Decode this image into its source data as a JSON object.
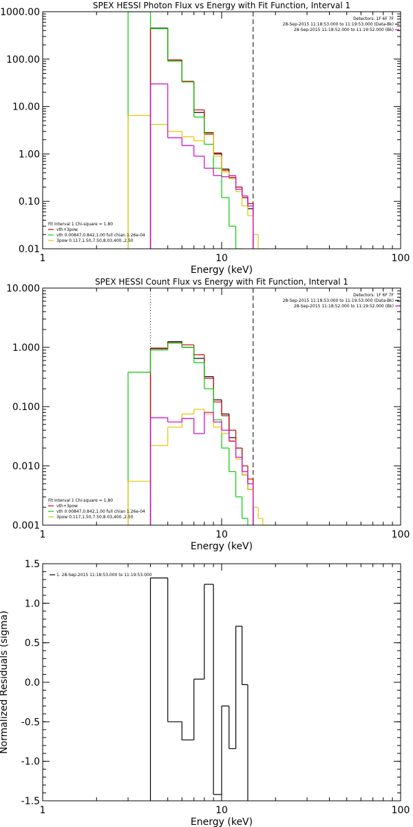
{
  "chart_data": [
    {
      "type": "line",
      "title": "SPEX HESSI Photon Flux vs Energy with Fit Function, Interval 1",
      "xlabel": "Energy (keV)",
      "ylabel": "",
      "xscale": "log",
      "yscale": "log",
      "xlim": [
        1,
        100
      ],
      "ylim": [
        0.01,
        1000
      ],
      "xtick_labels": [
        "1",
        "10",
        "100"
      ],
      "ytick_labels": [
        "0.01",
        "0.10",
        "1.00",
        "10.00",
        "100.00",
        "1000.00"
      ],
      "vlines": [
        {
          "x": 3.0,
          "color": "#00cc00",
          "style": "solid"
        },
        {
          "x": 4.0,
          "color": "#000000",
          "style": "solid"
        },
        {
          "x": 15.0,
          "color": "#000000",
          "style": "dashed"
        }
      ],
      "bin_edges": [
        3,
        4,
        5,
        6,
        7,
        8,
        9,
        10,
        11,
        12,
        13,
        14,
        15,
        16,
        17,
        18
      ],
      "series": [
        {
          "name": "vth+3pow",
          "color": "#000000",
          "values": [
            null,
            450,
            95,
            33,
            7.5,
            2.8,
            1.0,
            0.48,
            0.3,
            0.2,
            0.12,
            0.07,
            null,
            null,
            null
          ]
        },
        {
          "name": "data",
          "color": "#cc0000",
          "values": [
            null,
            440,
            96,
            34,
            8.5,
            2.6,
            1.05,
            0.45,
            0.32,
            0.2,
            0.12,
            0.09,
            null,
            null,
            null
          ]
        },
        {
          "name": "vth 0.00847,0.842,1.00  full chian 1.26e-04",
          "color": "#00cc00",
          "values": [
            1000,
            440,
            90,
            33,
            6.0,
            1.6,
            0.5,
            0.12,
            0.03,
            0.01,
            null,
            null,
            null,
            null,
            null
          ]
        },
        {
          "name": "3pow 0.117,1.50,7.50,8.03,400.,2.50",
          "color": "#e6c300",
          "values": [
            6.5,
            4.2,
            3.0,
            2.3,
            1.9,
            2.7,
            0.9,
            0.42,
            0.3,
            0.16,
            0.08,
            0.05,
            0.02,
            0.01,
            0.005
          ]
        },
        {
          "name": "bkg",
          "color": "#cc00cc",
          "values": [
            null,
            30,
            2.2,
            1.5,
            0.9,
            0.5,
            0.35,
            0.33,
            0.35,
            0.18,
            0.13,
            0.08,
            null,
            null,
            null
          ]
        }
      ],
      "legend_top": [
        {
          "text": "Detectors: 1F 6F 7F",
          "color": ""
        },
        {
          "text": "28-Sep-2015 11:18:53.000 to 11:19:53.000 (Data-Bk)",
          "color": "#000000"
        },
        {
          "text": "28-Sep-2015 11:18:52.000 to 11:19:52.000 (Bk)",
          "color": "#cc00cc"
        }
      ],
      "legend_bottom": [
        {
          "text": "Fit Interval 1   Chi-square = 1.80",
          "color": ""
        },
        {
          "text": "vth+3pow",
          "color": "#cc0000"
        },
        {
          "text": "vth 0.00847,0.842,1.00  full chian 1.26e-04",
          "color": "#00cc00"
        },
        {
          "text": "3pow 0.117,1.50,7.50,8.03,400.,2.50",
          "color": "#e6c300"
        }
      ]
    },
    {
      "type": "line",
      "title": "SPEX HESSI Count Flux vs Energy with Fit Function, Interval 1",
      "xlabel": "Energy (keV)",
      "ylabel": "",
      "xscale": "log",
      "yscale": "log",
      "xlim": [
        1,
        100
      ],
      "ylim": [
        0.001,
        10
      ],
      "xtick_labels": [
        "1",
        "10",
        "100"
      ],
      "ytick_labels": [
        "0.001",
        "0.010",
        "0.100",
        "1.000",
        "10.000"
      ],
      "vlines": [
        {
          "x": 4.0,
          "color": "#000000",
          "style": "dotted"
        },
        {
          "x": 15.0,
          "color": "#000000",
          "style": "dashed"
        }
      ],
      "bin_edges": [
        3,
        4,
        5,
        6,
        7,
        8,
        9,
        10,
        11,
        12,
        13,
        14,
        15,
        16,
        17,
        18
      ],
      "series": [
        {
          "name": "vth+3pow",
          "color": "#000000",
          "values": [
            null,
            0.95,
            1.25,
            1.0,
            0.65,
            0.32,
            0.13,
            0.075,
            0.03,
            0.02,
            0.007,
            0.004,
            null,
            null,
            null
          ]
        },
        {
          "name": "data",
          "color": "#cc0000",
          "values": [
            null,
            0.97,
            1.2,
            1.1,
            0.75,
            0.3,
            0.12,
            0.07,
            0.04,
            0.02,
            0.01,
            0.006,
            null,
            null,
            null
          ]
        },
        {
          "name": "vth 0.00847,0.842,1.00  full chian 1.26e-04",
          "color": "#00cc00",
          "values": [
            0.38,
            0.9,
            1.18,
            1.0,
            0.55,
            0.2,
            0.06,
            0.02,
            0.008,
            0.003,
            0.0013,
            null,
            null,
            null,
            null
          ]
        },
        {
          "name": "3pow 0.117,1.50,7.50,8.03,400.,2.50",
          "color": "#e6c300",
          "values": [
            0.0055,
            0.022,
            0.045,
            0.075,
            0.09,
            0.075,
            0.045,
            0.035,
            0.027,
            0.013,
            0.007,
            0.004,
            0.002,
            0.0013,
            0.001
          ]
        },
        {
          "name": "bkg",
          "color": "#cc00cc",
          "values": [
            null,
            0.065,
            0.055,
            0.063,
            0.035,
            0.08,
            0.055,
            0.04,
            0.026,
            0.014,
            0.008,
            0.005,
            null,
            null,
            null
          ]
        }
      ],
      "legend_top": [
        {
          "text": "Detectors: 1F 6F 7F",
          "color": ""
        },
        {
          "text": "28-Sep-2015 11:18:53.000 to 11:19:53.000 (Data-Bk)",
          "color": "#000000"
        },
        {
          "text": "28-Sep-2015 11:18:52.000 to 11:19:52.000 (Bk)",
          "color": "#cc00cc"
        }
      ],
      "legend_bottom": [
        {
          "text": "Fit Interval 1   Chi-square = 1.80",
          "color": ""
        },
        {
          "text": "vth+3pow",
          "color": "#cc0000"
        },
        {
          "text": "vth 0.00847,0.842,1.00  full chian 1.26e-04",
          "color": "#00cc00"
        },
        {
          "text": "3pow 0.117,1.50,7.50,8.03,400.,2.50",
          "color": "#e6c300"
        }
      ]
    },
    {
      "type": "line",
      "title": "",
      "xlabel": "Energy (keV)",
      "ylabel": "Normalized Residuals (sigma)",
      "xscale": "log",
      "yscale": "linear",
      "xlim": [
        1,
        100
      ],
      "ylim": [
        -1.5,
        1.5
      ],
      "xtick_labels": [
        "1",
        "10",
        "100"
      ],
      "ytick_labels": [
        "-1.5",
        "-1.0",
        "-0.5",
        "0.0",
        "0.5",
        "1.0",
        "1.5"
      ],
      "yticks": [
        -1.5,
        -1.0,
        -0.5,
        0.0,
        0.5,
        1.0,
        1.5
      ],
      "bin_edges": [
        4,
        5,
        6,
        7,
        8,
        9,
        10,
        11,
        12,
        13,
        14,
        15
      ],
      "series": [
        {
          "name": "1. 28-Sep-2015 11:18:53.000 to 11:19:53.000",
          "color": "#000000",
          "values": [
            1.32,
            -0.5,
            -0.73,
            0.04,
            1.24,
            -1.42,
            -0.3,
            -0.84,
            0.71,
            -0.03,
            null
          ]
        }
      ],
      "legend_top": [
        {
          "text": "1. 28-Sep-2015 11:18:53.000 to 11:19:53.000",
          "color": "#000000"
        }
      ],
      "legend_bottom": []
    }
  ]
}
